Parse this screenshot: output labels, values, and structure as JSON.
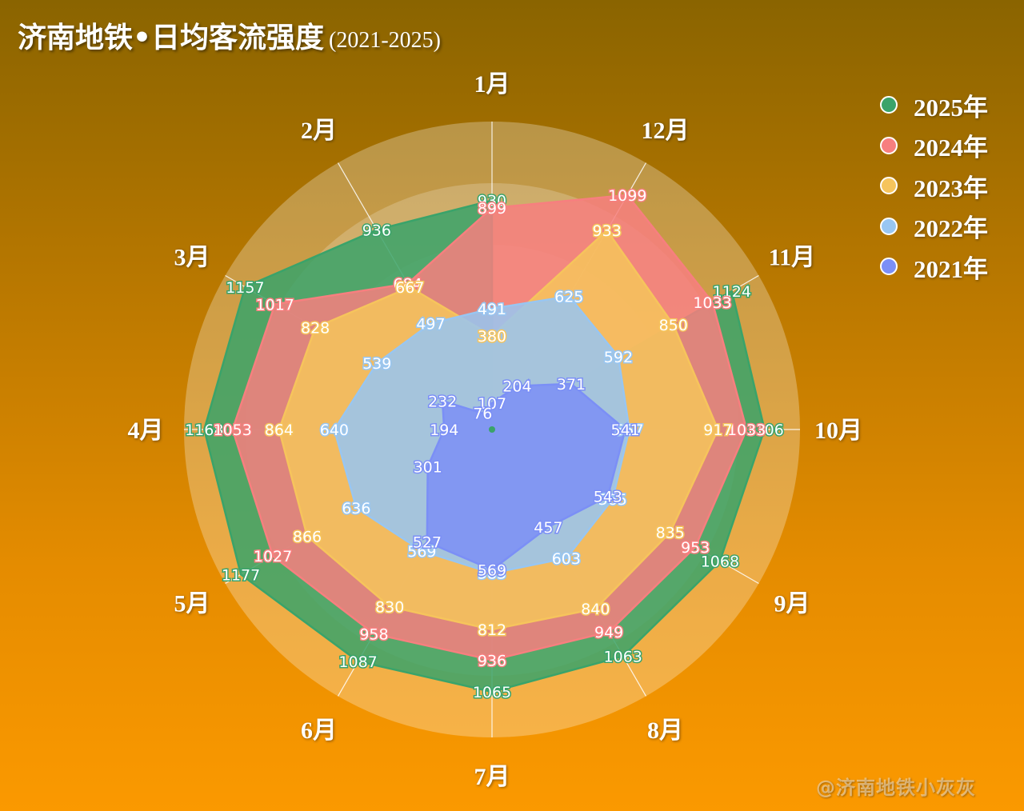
{
  "title": {
    "main": "济南地铁•日均客流强度",
    "sub": "(2021-2025)"
  },
  "chart_data": {
    "type": "radar",
    "categories": [
      "1月",
      "12月",
      "11月",
      "10月",
      "9月",
      "8月",
      "7月",
      "6月",
      "5月",
      "4月",
      "3月",
      "2月"
    ],
    "max": 1250,
    "series": [
      {
        "name": "2025年",
        "color": "#3aa36a",
        "values": [
          930,
          null,
          1124,
          1106,
          1068,
          1063,
          1065,
          1087,
          1177,
          1168,
          1157,
          936
        ]
      },
      {
        "name": "2024年",
        "color": "#f77f7f",
        "values": [
          899,
          1099,
          1033,
          1033,
          953,
          949,
          936,
          958,
          1027,
          1053,
          1017,
          684
        ]
      },
      {
        "name": "2023年",
        "color": "#f6c45c",
        "values": [
          380,
          933,
          850,
          917,
          835,
          840,
          812,
          830,
          866,
          864,
          828,
          667
        ]
      },
      {
        "name": "2022年",
        "color": "#98c6f2",
        "values": [
          491,
          625,
          592,
          557,
          565,
          603,
          583,
          569,
          636,
          640,
          539,
          497
        ]
      },
      {
        "name": "2021年",
        "color": "#7b8ff6",
        "values": [
          107,
          204,
          371,
          541,
          543,
          457,
          569,
          527,
          301,
          194,
          232,
          76
        ]
      }
    ],
    "legend_position": "top-right"
  },
  "watermark": "@济南地铁小灰灰"
}
